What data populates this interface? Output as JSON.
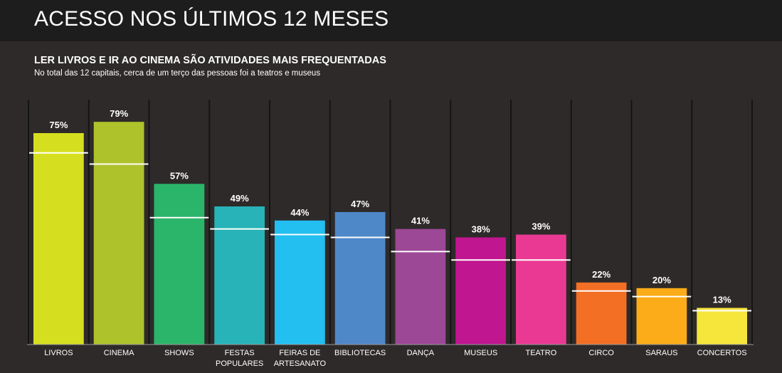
{
  "header": {
    "title": "ACESSO NOS ÚLTIMOS 12 MESES"
  },
  "chart_data": {
    "type": "bar",
    "title": "LER LIVROS E IR AO CINEMA SÃO ATIVIDADES MAIS FREQUENTADAS",
    "subtitle": "No total das 12 capitais, cerca de um terço das pessoas foi a teatros e museus",
    "xlabel": "",
    "ylabel": "",
    "ylim": [
      0,
      100
    ],
    "grid": false,
    "legend": "none",
    "categories": [
      [
        "LIVROS"
      ],
      [
        "CINEMA"
      ],
      [
        "SHOWS"
      ],
      [
        "FESTAS",
        "POPULARES"
      ],
      [
        "FEIRAS DE",
        "ARTESANATO"
      ],
      [
        "BIBLIOTECAS"
      ],
      [
        "DANÇA"
      ],
      [
        "MUSEUS"
      ],
      [
        "TEATRO"
      ],
      [
        "CIRCO"
      ],
      [
        "SARAUS"
      ],
      [
        "CONCERTOS"
      ]
    ],
    "values": [
      75,
      79,
      57,
      49,
      44,
      47,
      41,
      38,
      39,
      22,
      20,
      13
    ],
    "value_labels": [
      "75%",
      "79%",
      "57%",
      "49%",
      "44%",
      "47%",
      "41%",
      "38%",
      "39%",
      "22%",
      "20%",
      "13%"
    ],
    "reference_values": [
      68,
      64,
      45,
      41,
      39,
      38,
      33,
      30,
      30,
      19,
      17,
      12
    ],
    "colors": [
      "#d6df1f",
      "#aec22b",
      "#2bb56a",
      "#27b3b8",
      "#22bff0",
      "#4f88c9",
      "#9c4896",
      "#c0168f",
      "#ea3993",
      "#f26f24",
      "#fcac18",
      "#f6e53b"
    ],
    "reference_line_color": "#ffffff",
    "divider_color": "#141414"
  }
}
